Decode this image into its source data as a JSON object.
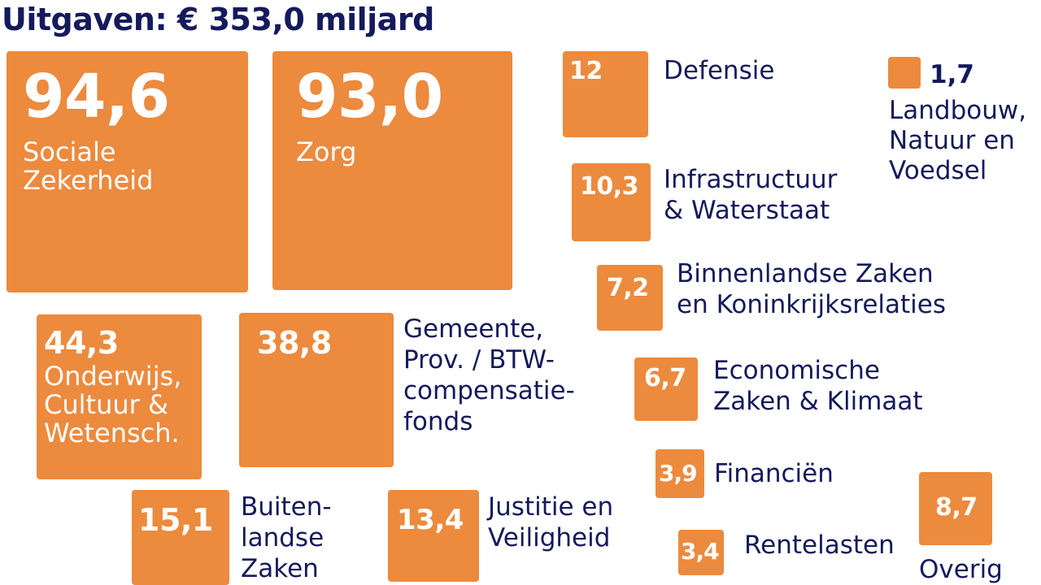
{
  "title": "Uitgaven: € 353,0 miljard",
  "colors": {
    "box": "#ec8a3e",
    "title": "#141a5c",
    "label": "#141a5c",
    "value_on_box": "#ffffff"
  },
  "chart_data": {
    "type": "treemap",
    "title": "Uitgaven: € 353,0 miljard",
    "unit": "miljard",
    "items": [
      {
        "label": "Sociale\nZekerheid",
        "value": 94.6,
        "display": "94,6"
      },
      {
        "label": "Zorg",
        "value": 93.0,
        "display": "93,0"
      },
      {
        "label": "Onderwijs,\nCultuur &\nWetensch.",
        "value": 44.3,
        "display": "44,3"
      },
      {
        "label": "Gemeente,\nProv. / BTW-\ncompensatie-\nfonds",
        "value": 38.8,
        "display": "38,8"
      },
      {
        "label": "Buiten-\nlandse\nZaken",
        "value": 15.1,
        "display": "15,1"
      },
      {
        "label": "Justitie en\nVeiligheid",
        "value": 13.4,
        "display": "13,4"
      },
      {
        "label": "Defensie",
        "value": 12,
        "display": "12"
      },
      {
        "label": "Infrastructuur\n& Waterstaat",
        "value": 10.3,
        "display": "10,3"
      },
      {
        "label": "Binnenlandse Zaken\nen Koninkrijksrelaties",
        "value": 7.2,
        "display": "7,2"
      },
      {
        "label": "Economische\nZaken & Klimaat",
        "value": 6.7,
        "display": "6,7"
      },
      {
        "label": "Financiën",
        "value": 3.9,
        "display": "3,9"
      },
      {
        "label": "Rentelasten",
        "value": 3.4,
        "display": "3,4"
      },
      {
        "label": "Overig",
        "value": 8.7,
        "display": "8,7"
      },
      {
        "label": "Landbouw,\nNatuur en\nVoedsel",
        "value": 1.7,
        "display": "1,7"
      }
    ]
  }
}
